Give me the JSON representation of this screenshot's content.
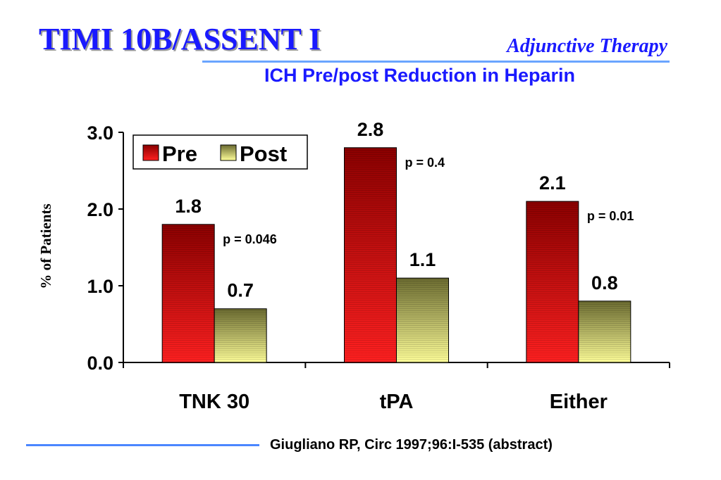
{
  "slide": {
    "title": "TIMI 10B/ASSENT I",
    "subtitle": "Adjunctive Therapy",
    "citation": "Giugliano RP, Circ 1997;96:I-535 (abstract)"
  },
  "colors": {
    "title": "#1a1aff",
    "rule": "#6aa5ff",
    "pre_dark": "#8a0000",
    "pre_light": "#ff2020",
    "post_dark": "#6b6b30",
    "post_light": "#ffff99"
  },
  "chart_data": {
    "type": "bar",
    "title": "ICH Pre/post Reduction in Heparin",
    "xlabel": "",
    "ylabel": "% of Patients",
    "ylim": [
      0,
      3.0
    ],
    "yticks": [
      "0.0",
      "1.0",
      "2.0",
      "3.0"
    ],
    "categories": [
      "TNK 30",
      "tPA",
      "Either"
    ],
    "series": [
      {
        "name": "Pre",
        "values": [
          1.8,
          2.8,
          2.1
        ],
        "labels": [
          "1.8",
          "2.8",
          "2.1"
        ]
      },
      {
        "name": "Post",
        "values": [
          0.7,
          1.1,
          0.8
        ],
        "labels": [
          "0.7",
          "1.1",
          "0.8"
        ]
      }
    ],
    "annotations": [
      "p = 0.046",
      "p = 0.4",
      "p = 0.01"
    ],
    "legend": "top-left",
    "grid": false
  }
}
